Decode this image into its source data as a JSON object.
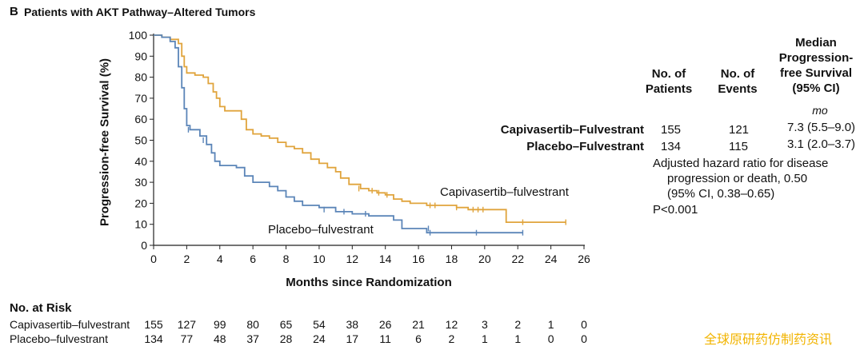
{
  "panel": {
    "letter": "B",
    "title": "Patients with AKT Pathway–Altered Tumors"
  },
  "chart_data": {
    "type": "line",
    "xlabel": "Months since Randomization",
    "ylabel": "Progression-free Survival (%)",
    "xlim": [
      0,
      26
    ],
    "ylim": [
      0,
      100
    ],
    "x_ticks": [
      0,
      2,
      4,
      6,
      8,
      10,
      12,
      14,
      16,
      18,
      20,
      22,
      24,
      26
    ],
    "y_ticks": [
      0,
      10,
      20,
      30,
      40,
      50,
      60,
      70,
      80,
      90,
      100
    ],
    "grid": false,
    "series": [
      {
        "name": "Capivasertib–fulvestrant",
        "color": "#e0a43c",
        "label_text": "Capivasertib–fulvestrant",
        "points": [
          [
            0,
            100
          ],
          [
            0.5,
            99
          ],
          [
            1.0,
            98
          ],
          [
            1.5,
            96
          ],
          [
            1.7,
            90
          ],
          [
            1.85,
            85
          ],
          [
            2.0,
            82
          ],
          [
            2.5,
            81
          ],
          [
            3.0,
            80
          ],
          [
            3.3,
            77
          ],
          [
            3.6,
            73
          ],
          [
            3.8,
            70
          ],
          [
            4.0,
            66
          ],
          [
            4.3,
            64
          ],
          [
            5.0,
            64
          ],
          [
            5.3,
            60
          ],
          [
            5.6,
            55
          ],
          [
            6.0,
            53
          ],
          [
            6.5,
            52
          ],
          [
            7.0,
            51
          ],
          [
            7.5,
            49
          ],
          [
            8.0,
            47
          ],
          [
            8.5,
            46
          ],
          [
            9.0,
            44
          ],
          [
            9.5,
            41
          ],
          [
            10.0,
            39
          ],
          [
            10.5,
            37
          ],
          [
            11.0,
            35
          ],
          [
            11.3,
            32
          ],
          [
            11.8,
            29
          ],
          [
            12.5,
            27
          ],
          [
            13.0,
            26
          ],
          [
            13.5,
            25
          ],
          [
            14.0,
            24
          ],
          [
            14.5,
            22
          ],
          [
            15.0,
            21
          ],
          [
            15.5,
            20
          ],
          [
            16.0,
            20
          ],
          [
            16.5,
            19
          ],
          [
            17.5,
            19
          ],
          [
            18.3,
            18
          ],
          [
            19.0,
            17
          ],
          [
            20.0,
            17
          ],
          [
            21.3,
            14
          ],
          [
            21.3,
            11
          ],
          [
            22.0,
            11
          ],
          [
            24.9,
            11
          ]
        ],
        "censor_marks": [
          [
            12.4,
            27
          ],
          [
            13.2,
            26
          ],
          [
            13.6,
            25
          ],
          [
            14.1,
            24
          ],
          [
            16.7,
            19
          ],
          [
            17.0,
            19
          ],
          [
            18.3,
            18
          ],
          [
            19.3,
            17
          ],
          [
            19.6,
            17
          ],
          [
            19.9,
            17
          ],
          [
            22.3,
            11
          ],
          [
            24.9,
            11
          ]
        ]
      },
      {
        "name": "Placebo–fulvestrant",
        "color": "#5b85b8",
        "label_text": "Placebo–fulvestrant",
        "points": [
          [
            0,
            100
          ],
          [
            0.5,
            99
          ],
          [
            1.0,
            97
          ],
          [
            1.3,
            94
          ],
          [
            1.5,
            85
          ],
          [
            1.7,
            75
          ],
          [
            1.85,
            65
          ],
          [
            2.0,
            57
          ],
          [
            2.2,
            55
          ],
          [
            2.8,
            52
          ],
          [
            3.2,
            48
          ],
          [
            3.5,
            44
          ],
          [
            3.7,
            40
          ],
          [
            4.0,
            38
          ],
          [
            5.0,
            37
          ],
          [
            5.5,
            33
          ],
          [
            6.0,
            30
          ],
          [
            7.0,
            28
          ],
          [
            7.5,
            26
          ],
          [
            8.0,
            23
          ],
          [
            8.5,
            21
          ],
          [
            9.0,
            19
          ],
          [
            10.0,
            18
          ],
          [
            11.0,
            16
          ],
          [
            12.0,
            15
          ],
          [
            13.0,
            14
          ],
          [
            14.5,
            12
          ],
          [
            15.0,
            8
          ],
          [
            16.0,
            8
          ],
          [
            16.5,
            6
          ],
          [
            19.0,
            6
          ],
          [
            22.3,
            6
          ]
        ],
        "censor_marks": [
          [
            2.1,
            55
          ],
          [
            3.0,
            50
          ],
          [
            10.3,
            17
          ],
          [
            11.5,
            16
          ],
          [
            12.8,
            15
          ],
          [
            16.6,
            8
          ],
          [
            16.7,
            6
          ],
          [
            19.5,
            6
          ],
          [
            22.3,
            6
          ]
        ]
      }
    ]
  },
  "stats_table": {
    "headers": {
      "patients": [
        "No. of",
        "Patients"
      ],
      "events": [
        "No. of",
        "Events"
      ],
      "median": [
        "Median",
        "Progression-",
        "free Survival",
        "(95% CI)"
      ]
    },
    "unit": "mo",
    "rows": [
      {
        "group": "Capivasertib–Fulvestrant",
        "patients": "155",
        "events": "121",
        "median": "7.3 (5.5–9.0)"
      },
      {
        "group": "Placebo–Fulvestrant",
        "patients": "134",
        "events": "115",
        "median": "3.1 (2.0–3.7)"
      }
    ],
    "hazard_lines": [
      "Adjusted hazard ratio for disease",
      "progression or death, 0.50",
      "(95% CI, 0.38–0.65)",
      "P<0.001"
    ]
  },
  "risk_table": {
    "title": "No. at Risk",
    "rows": [
      {
        "label": "Capivasertib–fulvestrant",
        "values": [
          "155",
          "127",
          "99",
          "80",
          "65",
          "54",
          "38",
          "26",
          "21",
          "12",
          "3",
          "2",
          "1",
          "0"
        ]
      },
      {
        "label": "Placebo–fulvestrant",
        "values": [
          "134",
          "77",
          "48",
          "37",
          "28",
          "24",
          "17",
          "11",
          "6",
          "2",
          "1",
          "1",
          "0",
          "0"
        ]
      }
    ]
  },
  "watermark": "全球原研药仿制药资讯"
}
